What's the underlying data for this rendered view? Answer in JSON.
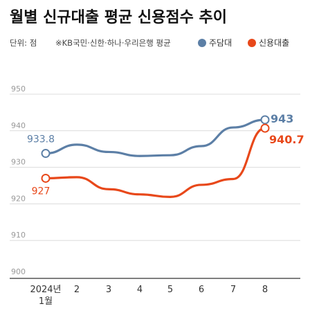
{
  "title": "월별 신규대출 평균 신용점수 추이",
  "unit_label": "단위: 점",
  "note": "※KB국민·신한·하나·우리은행 평균",
  "chart_data": {
    "type": "line",
    "title": "월별 신규대출 평균 신용점수 추이",
    "categories": [
      "2024년\n1월",
      "2",
      "3",
      "4",
      "5",
      "6",
      "7",
      "8"
    ],
    "ylim": [
      900,
      950
    ],
    "yticks": [
      900,
      910,
      920,
      930,
      940,
      950
    ],
    "grid": true,
    "legend_position": "top-right",
    "series": [
      {
        "name": "주담대",
        "color": "#5c7fa6",
        "values": [
          933.8,
          936.2,
          934.2,
          933.1,
          933.3,
          935.8,
          940.9,
          943
        ],
        "labels": {
          "0": "933.8",
          "7": "943"
        }
      },
      {
        "name": "신용대출",
        "color": "#e8481a",
        "values": [
          927,
          927.3,
          924.0,
          922.6,
          921.9,
          925.2,
          926.8,
          940.7
        ],
        "labels": {
          "0": "927",
          "7": "940.7"
        }
      }
    ]
  }
}
